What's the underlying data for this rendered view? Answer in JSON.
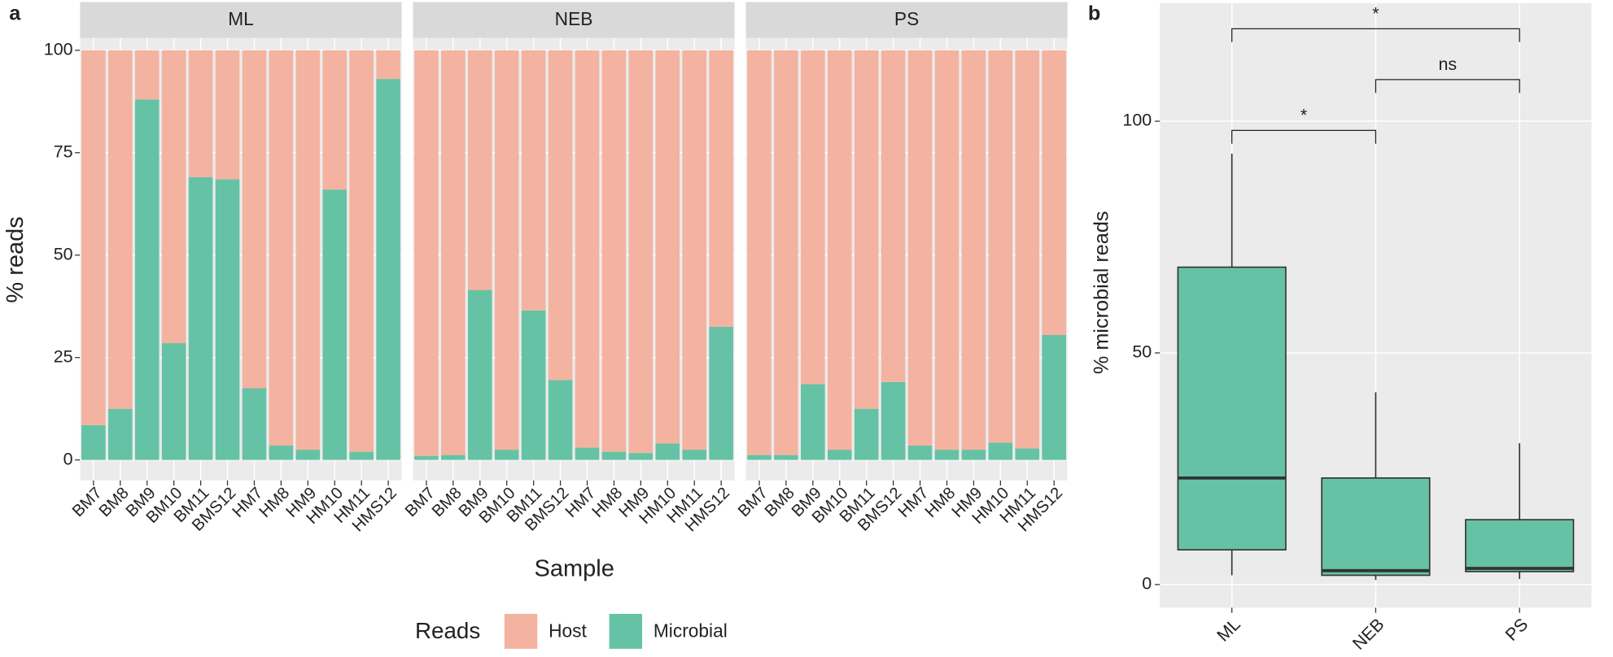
{
  "chart_data": [
    {
      "type": "bar",
      "stacked": true,
      "panel_label": "a",
      "ylabel": "% reads",
      "xlabel": "Sample",
      "legend_title": "Reads",
      "ylim": [
        -5,
        103
      ],
      "yticks": [
        0,
        25,
        50,
        75,
        100
      ],
      "grid": true,
      "series": [
        {
          "name": "Host",
          "color": "#f4b3a0"
        },
        {
          "name": "Microbial",
          "color": "#66c2a5"
        }
      ],
      "facets": [
        {
          "title": "ML",
          "categories": [
            "BM7",
            "BM8",
            "BM9",
            "BM10",
            "BM11",
            "BMS12",
            "HM7",
            "HM8",
            "HM9",
            "HM10",
            "HM11",
            "HMS12"
          ],
          "series": [
            {
              "values": [
                91.5,
                87.5,
                12,
                71.5,
                31,
                31.5,
                82.5,
                96.5,
                97.5,
                34,
                98,
                7
              ]
            },
            {
              "values": [
                8.5,
                12.5,
                88,
                28.5,
                69,
                68.5,
                17.5,
                3.5,
                2.5,
                66,
                2,
                93
              ]
            }
          ]
        },
        {
          "title": "NEB",
          "categories": [
            "BM7",
            "BM8",
            "BM9",
            "BM10",
            "BM11",
            "BMS12",
            "HM7",
            "HM8",
            "HM9",
            "HM10",
            "HM11",
            "HMS12"
          ],
          "series": [
            {
              "values": [
                99,
                98.8,
                58.5,
                97.5,
                63.5,
                80.5,
                97,
                98,
                98.3,
                96,
                97.5,
                67.5
              ]
            },
            {
              "values": [
                1,
                1.2,
                41.5,
                2.5,
                36.5,
                19.5,
                3,
                2,
                1.7,
                4,
                2.5,
                32.5
              ]
            }
          ]
        },
        {
          "title": "PS",
          "categories": [
            "BM7",
            "BM8",
            "BM9",
            "BM10",
            "BM11",
            "BMS12",
            "HM7",
            "HM8",
            "HM9",
            "HM10",
            "HM11",
            "HMS12"
          ],
          "series": [
            {
              "values": [
                98.8,
                98.8,
                81.5,
                97.5,
                87.5,
                81,
                96.5,
                97.5,
                97.5,
                95.8,
                97.2,
                69.5
              ]
            },
            {
              "values": [
                1.2,
                1.2,
                18.5,
                2.5,
                12.5,
                19,
                3.5,
                2.5,
                2.5,
                4.2,
                2.8,
                30.5
              ]
            }
          ]
        }
      ]
    },
    {
      "type": "box",
      "panel_label": "b",
      "ylabel": "% microbial reads",
      "color": "#66c2a5",
      "categories": [
        "ML",
        "NEB",
        "PS"
      ],
      "boxes": [
        {
          "whislo": 2,
          "q1": 7.5,
          "med": 23,
          "q3": 68.5,
          "whishi": 93
        },
        {
          "whislo": 1,
          "q1": 2,
          "med": 3,
          "q3": 23,
          "whishi": 41.5
        },
        {
          "whislo": 1.2,
          "q1": 2.8,
          "med": 3.5,
          "q3": 14,
          "whishi": 30.5
        }
      ],
      "ylim": [
        -5,
        125.5
      ],
      "yticks": [
        0,
        50,
        100
      ],
      "grid": true,
      "comparisons": [
        {
          "groups": [
            "ML",
            "NEB"
          ],
          "label": "*"
        },
        {
          "groups": [
            "NEB",
            "PS"
          ],
          "label": "ns"
        },
        {
          "groups": [
            "ML",
            "PS"
          ],
          "label": "*"
        }
      ]
    }
  ]
}
